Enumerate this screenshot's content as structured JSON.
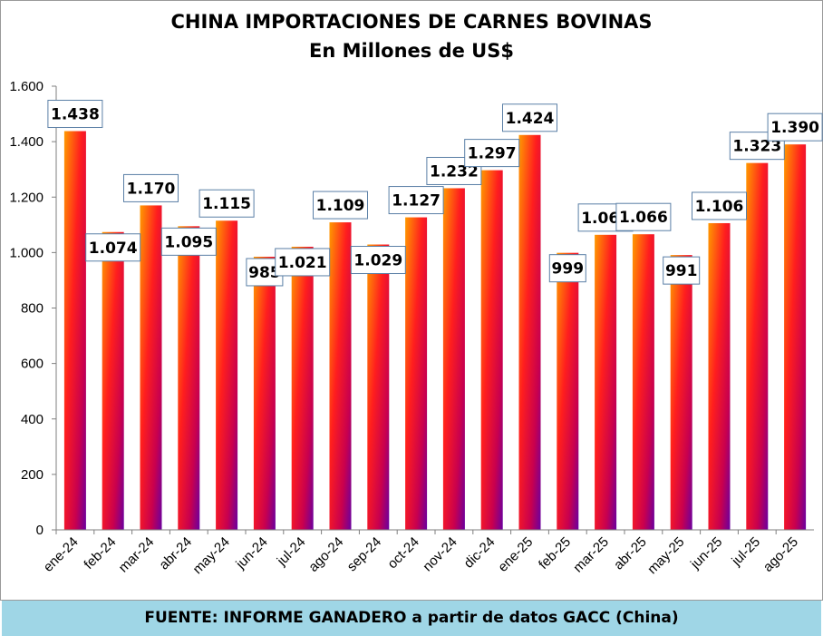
{
  "chart_data": {
    "type": "bar",
    "title": "CHINA IMPORTACIONES DE CARNES BOVINAS",
    "subtitle": "En Millones de US$",
    "categories": [
      "ene-24",
      "feb-24",
      "mar-24",
      "abr-24",
      "may-24",
      "jun-24",
      "jul-24",
      "ago-24",
      "sep-24",
      "oct-24",
      "nov-24",
      "dic-24",
      "ene-25",
      "feb-25",
      "mar-25",
      "abr-25",
      "may-25",
      "jun-25",
      "jul-25",
      "ago-25"
    ],
    "values": [
      1438,
      1074,
      1170,
      1095,
      1115,
      985,
      1021,
      1109,
      1029,
      1127,
      1232,
      1297,
      1424,
      999,
      1064,
      1066,
      991,
      1106,
      1323,
      1390
    ],
    "value_labels": [
      "1.438",
      "1.074",
      "1.170",
      "1.095",
      "1.115",
      "985",
      "1.021",
      "1.109",
      "1.029",
      "1.127",
      "1.232",
      "1.297",
      "1.424",
      "999",
      "1.064",
      "1.066",
      "991",
      "1.106",
      "1.323",
      "1.390"
    ],
    "yticks": [
      0,
      200,
      400,
      600,
      800,
      1000,
      1200,
      1400,
      1600
    ],
    "ytick_labels": [
      "0",
      "200",
      "400",
      "600",
      "800",
      "1.000",
      "1.200",
      "1.400",
      "1.600"
    ],
    "ylim": [
      0,
      1600
    ],
    "xlabel": "",
    "ylabel": "",
    "grid": false,
    "legend": "none",
    "colors": {
      "bar_top": "#ff8c00",
      "bar_mid": "#ff1a1a",
      "bar_bottom": "#7a0099",
      "label_border": "#5a7fa6"
    }
  },
  "footer": {
    "source": "FUENTE: INFORME GANADERO a partir de datos GACC (China)"
  }
}
